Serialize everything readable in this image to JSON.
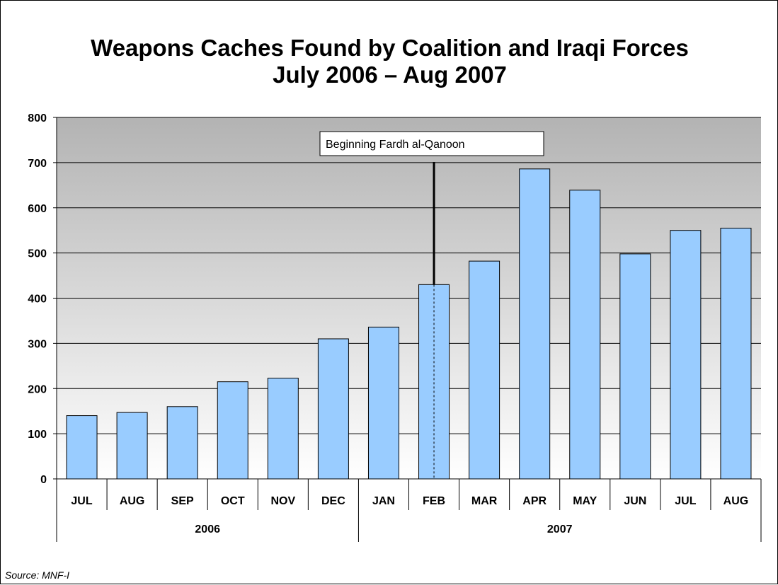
{
  "title_line1": "Weapons Caches Found by Coalition and Iraqi Forces",
  "title_line2": "July 2006 – Aug 2007",
  "source": "Source: MNF-I",
  "colors": {
    "bar_fill": "#99ccff",
    "bar_stroke": "#000000",
    "plot_bg_top": "#b3b3b3",
    "plot_bg_bottom": "#ffffff",
    "gridline": "#000000",
    "annotation_line": "#000000"
  },
  "chart_data": {
    "type": "bar",
    "title": "Weapons Caches Found by Coalition and Iraqi Forces July 2006 – Aug 2007",
    "categories": [
      "JUL",
      "AUG",
      "SEP",
      "OCT",
      "NOV",
      "DEC",
      "JAN",
      "FEB",
      "MAR",
      "APR",
      "MAY",
      "JUN",
      "JUL",
      "AUG"
    ],
    "groups": [
      {
        "label": "2006",
        "span": 6
      },
      {
        "label": "2007",
        "span": 8
      }
    ],
    "series": [
      {
        "values": [
          140,
          147,
          160,
          215,
          223,
          310,
          336,
          430,
          482,
          686,
          639,
          498,
          550,
          555
        ]
      }
    ],
    "ylim": [
      0,
      800
    ],
    "yticks": [
      0,
      100,
      200,
      300,
      400,
      500,
      600,
      700,
      800
    ],
    "grid": true,
    "annotation": {
      "text": "Beginning Fardh al-Qanoon",
      "category_index": 7
    }
  }
}
